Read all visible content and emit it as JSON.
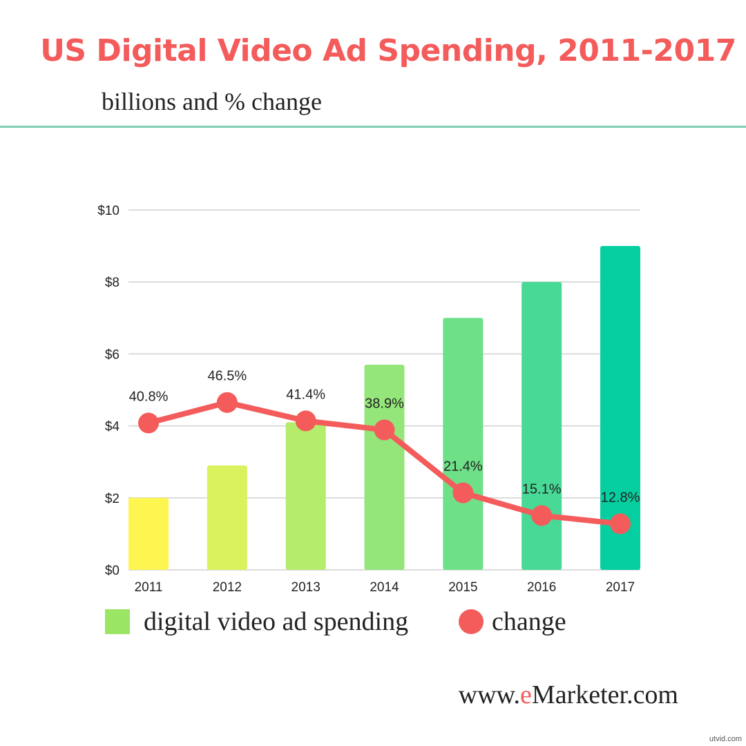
{
  "chart_data": {
    "type": "bar+line",
    "title": "US Digital Video Ad Spending, 2011-2017",
    "subtitle": "billions and % change",
    "categories": [
      "2011",
      "2012",
      "2013",
      "2014",
      "2015",
      "2016",
      "2017"
    ],
    "series": [
      {
        "name": "digital video ad spending",
        "type": "bar",
        "values": [
          2.0,
          2.9,
          4.1,
          5.7,
          7.0,
          8.0,
          9.0
        ],
        "colors": [
          "#fdf650",
          "#d9f25e",
          "#b4ec6c",
          "#94e67a",
          "#6ee088",
          "#48d996",
          "#05cfa0"
        ]
      },
      {
        "name": "change",
        "type": "line",
        "values": [
          40.8,
          46.5,
          41.4,
          38.9,
          21.4,
          15.1,
          12.8
        ],
        "labels": [
          "40.8%",
          "46.5%",
          "41.4%",
          "38.9%",
          "21.4%",
          "15.1%",
          "12.8%"
        ],
        "color": "#f45b5b"
      }
    ],
    "yticks": [
      "$0",
      "$2",
      "$4",
      "$6",
      "$8",
      "$10"
    ],
    "ylim": [
      0,
      10
    ],
    "grid": true,
    "legend": "bottom"
  },
  "footer": {
    "prefix": "www.",
    "accent": "e",
    "suffix": "Marketer.com"
  },
  "watermark": "utvid.com"
}
